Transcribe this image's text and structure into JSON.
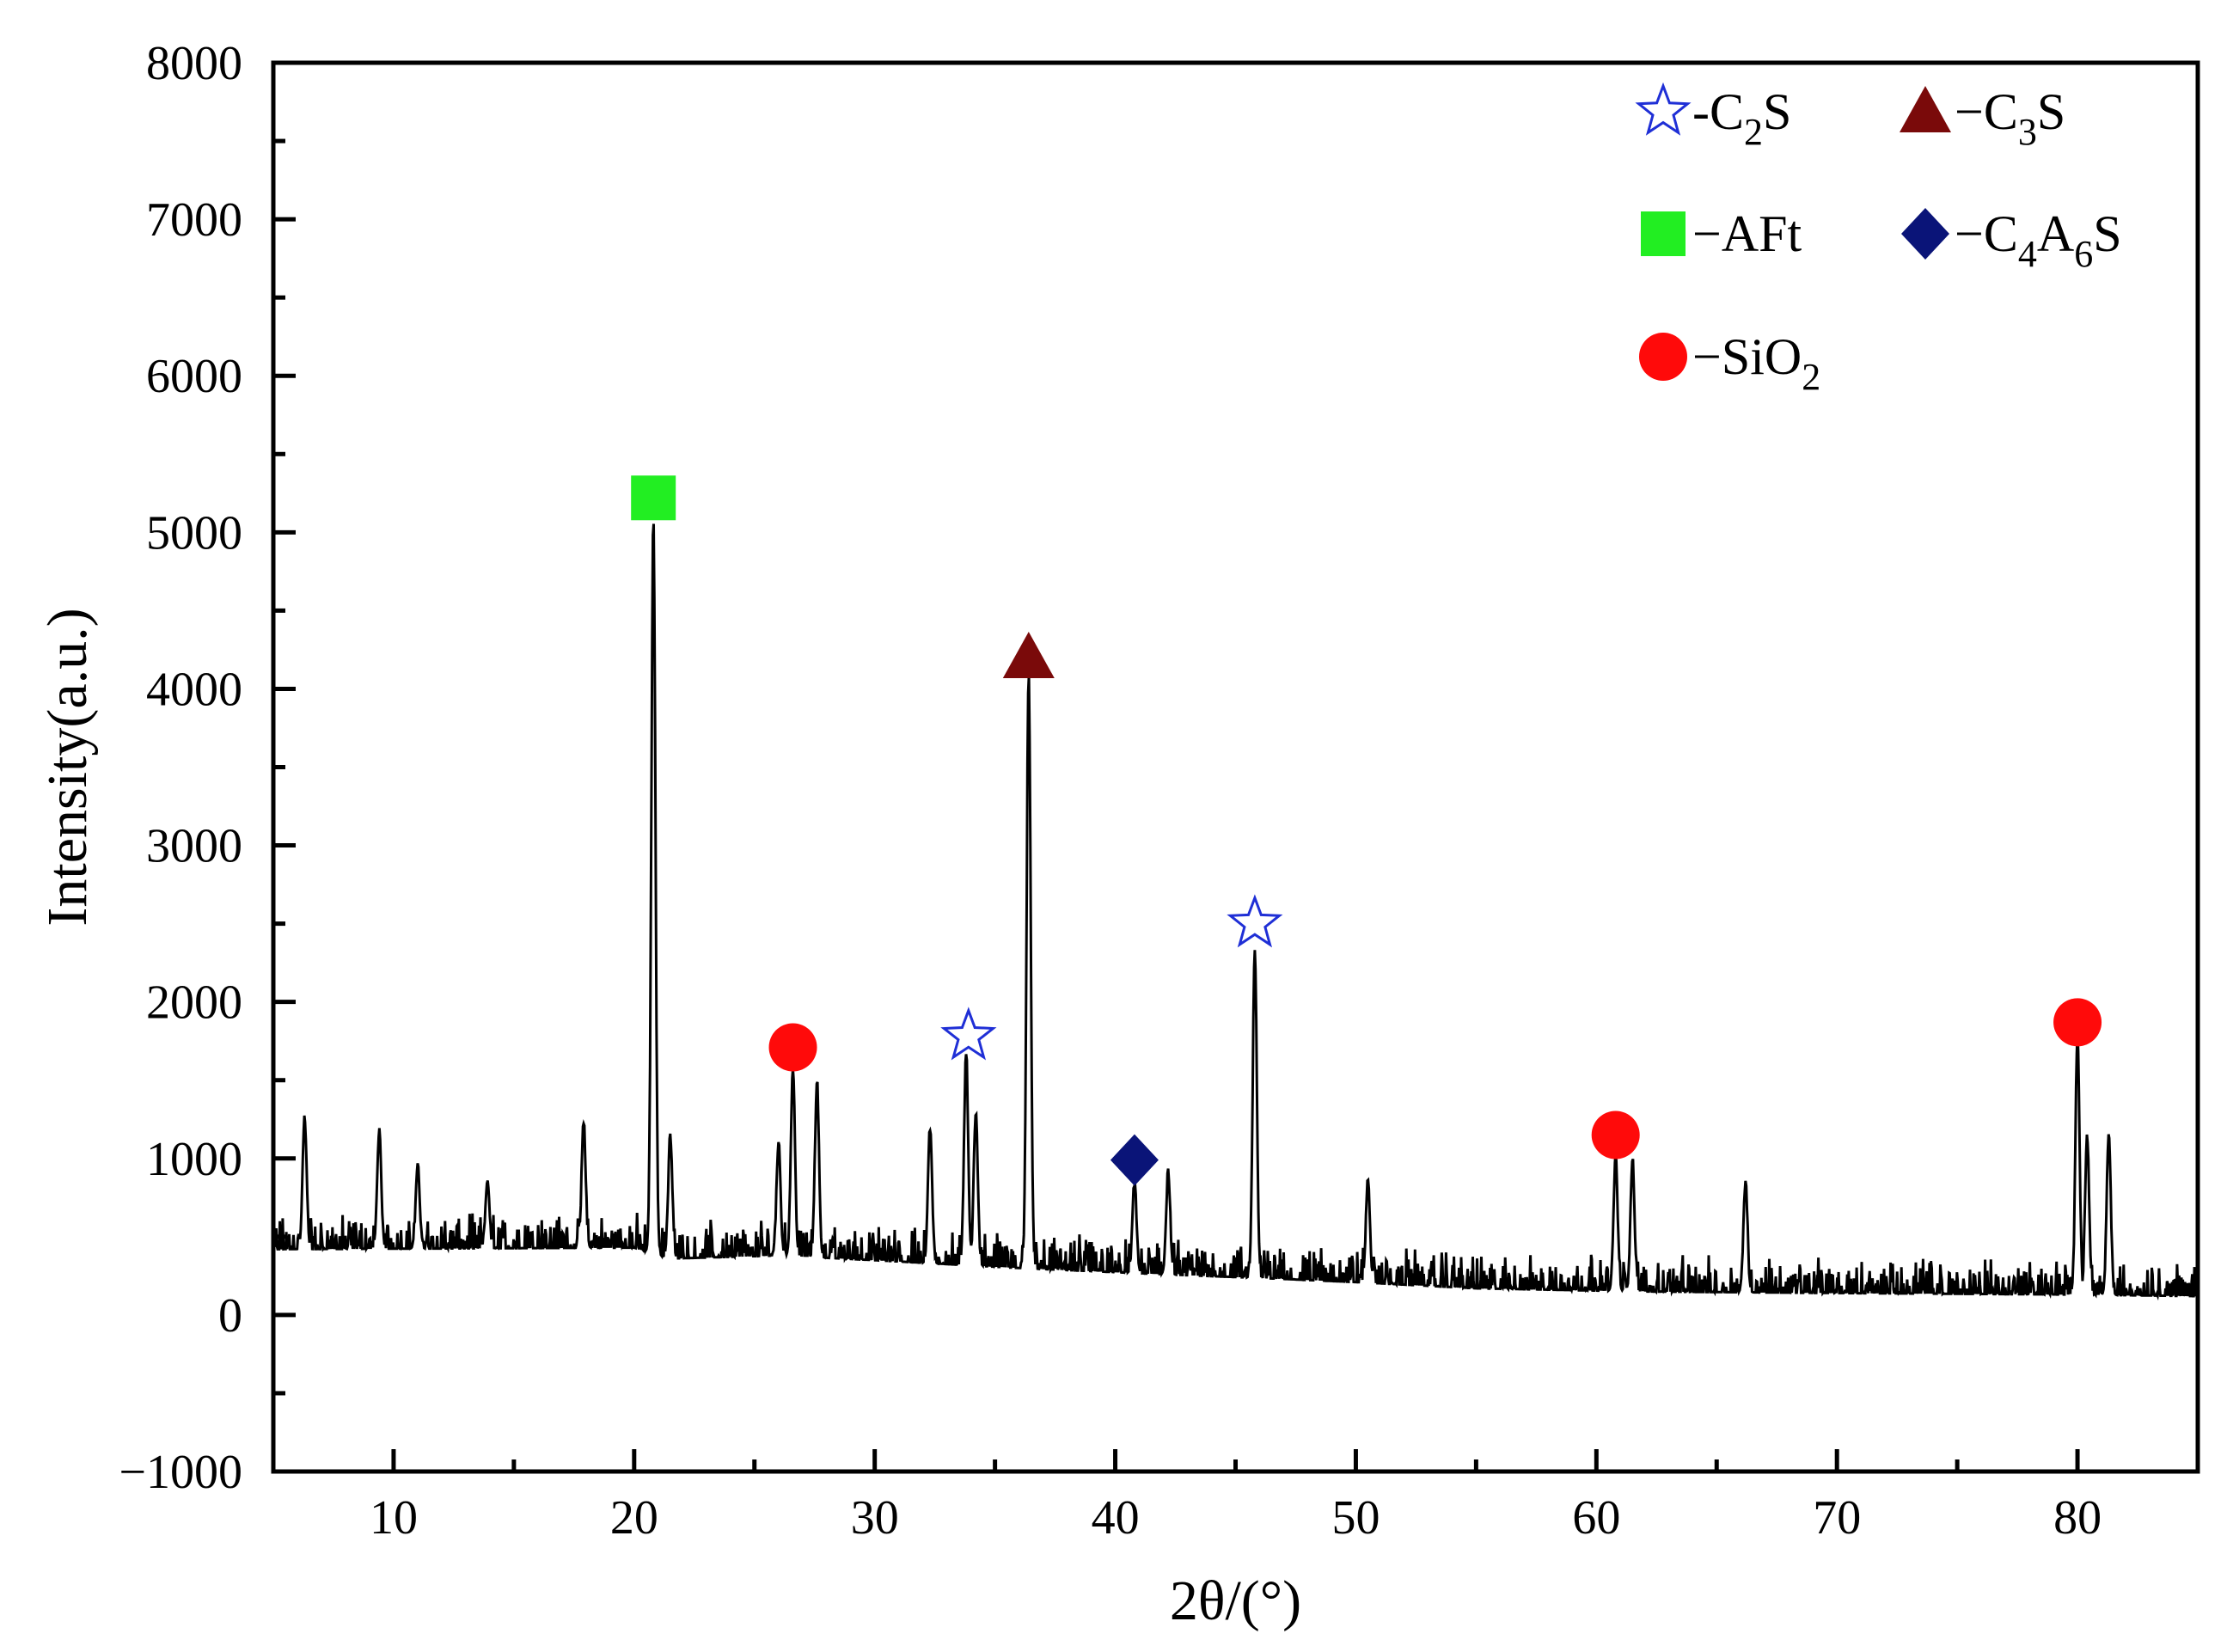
{
  "chart_data": {
    "type": "line",
    "title": "",
    "xlabel": "2θ/(°)",
    "ylabel": "Intensity(a.u.)",
    "xlim": [
      5,
      85
    ],
    "ylim": [
      -1000,
      8000
    ],
    "x_ticks": [
      10,
      20,
      30,
      40,
      50,
      60,
      70,
      80
    ],
    "y_ticks": [
      -1000,
      0,
      1000,
      2000,
      3000,
      4000,
      5000,
      6000,
      7000,
      8000
    ],
    "x_tick_labels": [
      "10",
      "20",
      "30",
      "40",
      "50",
      "60",
      "70",
      "80"
    ],
    "y_tick_labels": [
      "−1000",
      "0",
      "1000",
      "2000",
      "3000",
      "4000",
      "5000",
      "6000",
      "7000",
      "8000"
    ],
    "grid": false,
    "legend_position": "top-right",
    "series": [
      {
        "color": "#000000",
        "baseline": [
          [
            5,
            420
          ],
          [
            20,
            430
          ],
          [
            21.5,
            360
          ],
          [
            26,
            380
          ],
          [
            30,
            350
          ],
          [
            36,
            300
          ],
          [
            42,
            260
          ],
          [
            47,
            230
          ],
          [
            50,
            210
          ],
          [
            55,
            170
          ],
          [
            62,
            150
          ],
          [
            70,
            140
          ],
          [
            80,
            130
          ],
          [
            85,
            120
          ]
        ],
        "noise_amplitude": 250,
        "peaks": [
          {
            "x": 6.3,
            "y": 1250
          },
          {
            "x": 9.4,
            "y": 1170
          },
          {
            "x": 11.0,
            "y": 950
          },
          {
            "x": 13.9,
            "y": 850
          },
          {
            "x": 17.9,
            "y": 1230
          },
          {
            "x": 20.8,
            "y": 5100
          },
          {
            "x": 21.5,
            "y": 1150
          },
          {
            "x": 26.0,
            "y": 1100
          },
          {
            "x": 26.6,
            "y": 1600
          },
          {
            "x": 27.6,
            "y": 1500
          },
          {
            "x": 32.3,
            "y": 1200
          },
          {
            "x": 33.8,
            "y": 1680
          },
          {
            "x": 34.2,
            "y": 1300
          },
          {
            "x": 36.4,
            "y": 4100
          },
          {
            "x": 40.8,
            "y": 850
          },
          {
            "x": 42.2,
            "y": 920
          },
          {
            "x": 45.8,
            "y": 2350
          },
          {
            "x": 50.5,
            "y": 850
          },
          {
            "x": 60.8,
            "y": 1020
          },
          {
            "x": 61.5,
            "y": 1000
          },
          {
            "x": 66.2,
            "y": 850
          },
          {
            "x": 80.0,
            "y": 1800
          },
          {
            "x": 80.4,
            "y": 1150
          },
          {
            "x": 81.3,
            "y": 1170
          }
        ]
      }
    ],
    "phase_markers": [
      {
        "x": 20.8,
        "y": 5220,
        "phase": "AFt",
        "symbol": "square",
        "color": "#22ee22"
      },
      {
        "x": 26.6,
        "y": 1710,
        "phase": "SiO2",
        "symbol": "circle",
        "color": "#ff0a0a"
      },
      {
        "x": 33.9,
        "y": 1780,
        "phase": "C2S",
        "symbol": "star-open",
        "color": "#1f2fd6"
      },
      {
        "x": 36.4,
        "y": 4200,
        "phase": "C3S",
        "symbol": "triangle",
        "color": "#7a0a0a"
      },
      {
        "x": 40.8,
        "y": 990,
        "phase": "C4A6S",
        "symbol": "diamond",
        "color": "#0a1478"
      },
      {
        "x": 45.8,
        "y": 2500,
        "phase": "C2S",
        "symbol": "star-open",
        "color": "#1f2fd6"
      },
      {
        "x": 60.8,
        "y": 1150,
        "phase": "SiO2",
        "symbol": "circle",
        "color": "#ff0a0a"
      },
      {
        "x": 80.0,
        "y": 1870,
        "phase": "SiO2",
        "symbol": "circle",
        "color": "#ff0a0a"
      }
    ],
    "legend": [
      {
        "symbol": "star-open",
        "color": "#1f2fd6",
        "prefix": "-C",
        "sub": "2",
        "suffix": "S"
      },
      {
        "symbol": "triangle",
        "color": "#7a0a0a",
        "prefix": "−C",
        "sub": "3",
        "suffix": "S"
      },
      {
        "symbol": "square",
        "color": "#22ee22",
        "prefix": "−AFt",
        "sub": "",
        "suffix": ""
      },
      {
        "symbol": "diamond",
        "color": "#0a1478",
        "prefix": "−C",
        "sub": "4",
        "suffix": "A",
        "sub2": "6",
        "suffix2": "S"
      },
      {
        "symbol": "circle",
        "color": "#ff0a0a",
        "prefix": "−SiO",
        "sub": "2",
        "suffix": ""
      }
    ]
  }
}
